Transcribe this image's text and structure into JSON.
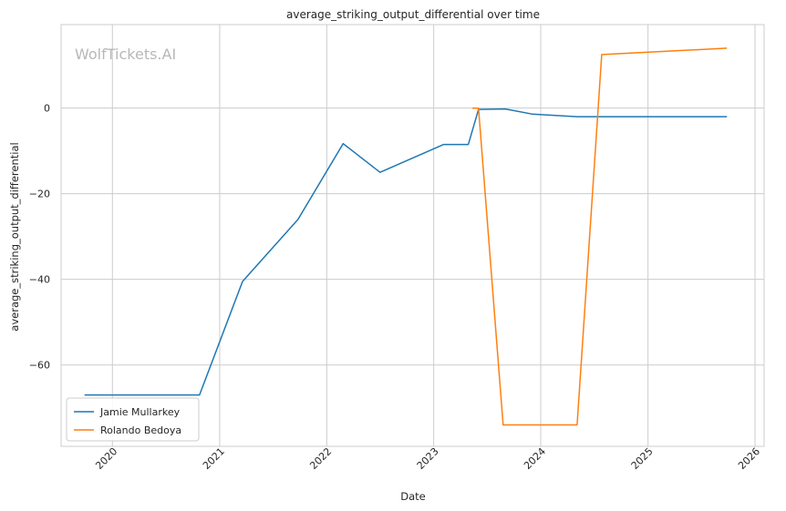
{
  "chart_data": {
    "type": "line",
    "title": "average_striking_output_differential over time",
    "xlabel": "Date",
    "ylabel": "average_striking_output_differential",
    "watermark": "WolfTickets.AI",
    "x_axis": "date",
    "xlim": [
      "2019-07-10",
      "2026-02-01"
    ],
    "ylim": [
      -79,
      19.5
    ],
    "x_ticks": [
      "2020",
      "2021",
      "2022",
      "2023",
      "2024",
      "2025",
      "2026"
    ],
    "y_ticks": [
      0,
      -20,
      -40,
      -60
    ],
    "grid": true,
    "legend_position": "lower-left",
    "series": [
      {
        "name": "Jamie Mullarkey",
        "color": "#1f77b4",
        "points": [
          [
            "2019-09-28",
            -67.0
          ],
          [
            "2020-10-24",
            -67.0
          ],
          [
            "2021-03-20",
            -40.5
          ],
          [
            "2021-09-25",
            -26.0
          ],
          [
            "2022-02-26",
            -8.3
          ],
          [
            "2022-07-02",
            -15.0
          ],
          [
            "2023-02-04",
            -8.5
          ],
          [
            "2023-04-29",
            -8.5
          ],
          [
            "2023-06-03",
            -0.3
          ],
          [
            "2023-09-02",
            -0.2
          ],
          [
            "2023-12-02",
            -1.4
          ],
          [
            "2024-05-04",
            -2.0
          ],
          [
            "2025-09-27",
            -2.0
          ]
        ]
      },
      {
        "name": "Rolando Bedoya",
        "color": "#ff7f0e",
        "points": [
          [
            "2023-05-13",
            0.0
          ],
          [
            "2023-06-03",
            0.0
          ],
          [
            "2023-08-26",
            -74.0
          ],
          [
            "2024-05-04",
            -74.0
          ],
          [
            "2024-07-27",
            12.5
          ],
          [
            "2025-09-27",
            14.0
          ]
        ]
      }
    ]
  }
}
